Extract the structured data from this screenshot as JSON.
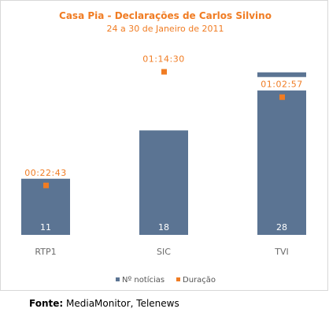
{
  "chart_data": {
    "type": "bar",
    "title": "Casa Pia - Declarações de Carlos Silvino",
    "subtitle": "24 a 30 de Janeiro de 2011",
    "categories": [
      "RTP1",
      "SIC",
      "TVI"
    ],
    "series": [
      {
        "name": "Nº notícias",
        "type": "bar",
        "values": [
          11,
          18,
          28
        ],
        "color": "#5b7493"
      },
      {
        "name": "Duração",
        "type": "marker",
        "values": [
          "00:22:43",
          "01:14:30",
          "01:02:57"
        ],
        "color": "#f07c23"
      }
    ],
    "ylim": [
      0,
      31.5
    ],
    "legend": "bottom",
    "grid": false
  },
  "source": {
    "label": "Fonte:",
    "text": "MediaMonitor, Telenews"
  }
}
